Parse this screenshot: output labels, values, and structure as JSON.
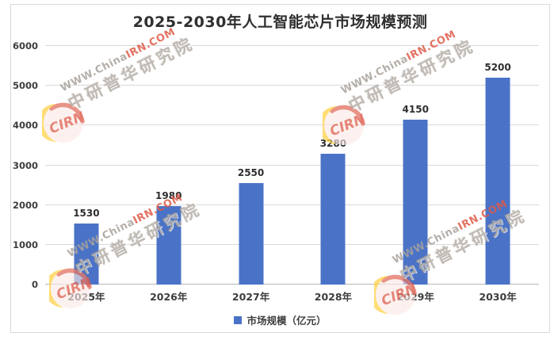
{
  "title": "2025-2030年人工智能芯片市场规模预测",
  "chart_data": {
    "type": "bar",
    "title": "2025-2030年人工智能芯片市场规模预测",
    "categories": [
      "2025年",
      "2026年",
      "2027年",
      "2028年",
      "2029年",
      "2030年"
    ],
    "values": [
      1530,
      1980,
      2550,
      3280,
      4150,
      5200
    ],
    "series_name": "市场规模（亿元）",
    "xlabel": "",
    "ylabel": "",
    "ylim": [
      0,
      6000
    ],
    "yticks": [
      0,
      1000,
      2000,
      3000,
      4000,
      5000,
      6000
    ],
    "grid": true,
    "legend_position": "bottom",
    "bar_color": "#4a73c7"
  },
  "legend": {
    "label": "市场规模（亿元）",
    "swatch_color": "#4a73c7"
  },
  "watermark": {
    "line1_gray": "WWW.China",
    "line1_red": "IRN.COM",
    "line2": "中研普华研究院",
    "logo_text": "CIRN",
    "logo_red": "#dd5b4a",
    "logo_yellow": "#ffd34d"
  },
  "colors": {
    "bar": "#4a73c7",
    "gridline": "#d9d9d9",
    "axis_line": "#b7b7b7",
    "border": "#d9d9d9",
    "text": "#3d3d3d"
  }
}
